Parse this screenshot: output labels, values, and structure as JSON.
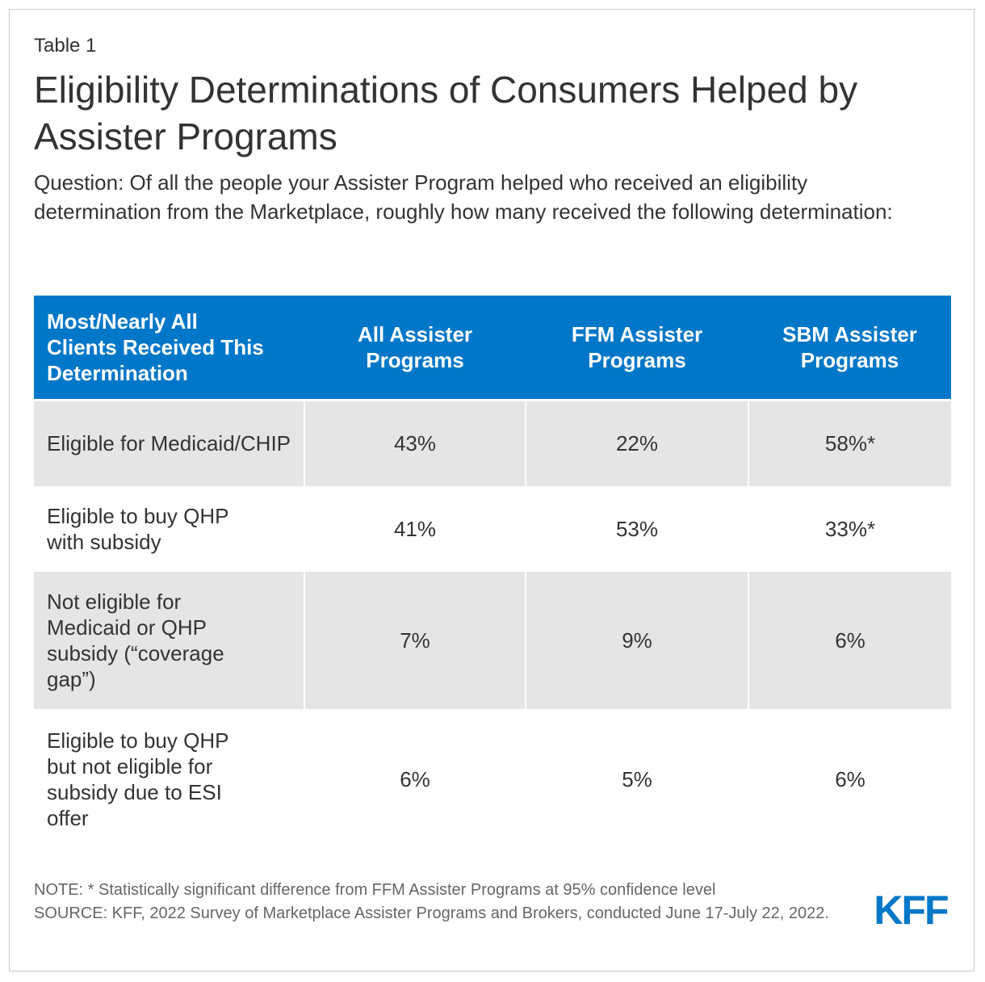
{
  "header": {
    "label": "Table 1",
    "title": "Eligibility Determinations of Consumers Helped by Assister Programs",
    "question": "Question: Of all the people your Assister Program helped who received an eligibility determination from the Marketplace, roughly how many received the following determination:"
  },
  "table": {
    "columns": [
      "Most/Nearly All Clients Received This Determination",
      "All Assister Programs",
      "FFM Assister Programs",
      "SBM Assister Programs"
    ],
    "rows": [
      {
        "category": "Eligible for Medicaid/CHIP",
        "all": "43%",
        "ffm": "22%",
        "sbm": "58%*"
      },
      {
        "category": "Eligible to buy QHP with subsidy",
        "all": "41%",
        "ffm": "53%",
        "sbm": "33%*"
      },
      {
        "category": "Not eligible for Medicaid or QHP subsidy (“coverage gap”)",
        "all": "7%",
        "ffm": "9%",
        "sbm": "6%"
      },
      {
        "category": "Eligible to buy QHP but not eligible for subsidy due to ESI offer",
        "all": "6%",
        "ffm": "5%",
        "sbm": "6%"
      }
    ]
  },
  "footer": {
    "note": "NOTE: * Statistically significant difference from FFM Assister Programs at 95% confidence level",
    "source": "SOURCE: KFF, 2022 Survey of Marketplace Assister Programs and Brokers, conducted June 17-July 22, 2022."
  },
  "logo": {
    "text": "KFF",
    "color": "#0077c8"
  },
  "colors": {
    "header_bg": "#0077c8",
    "shade_bg": "#e5e5e5",
    "text": "#333333",
    "note": "#666666"
  }
}
